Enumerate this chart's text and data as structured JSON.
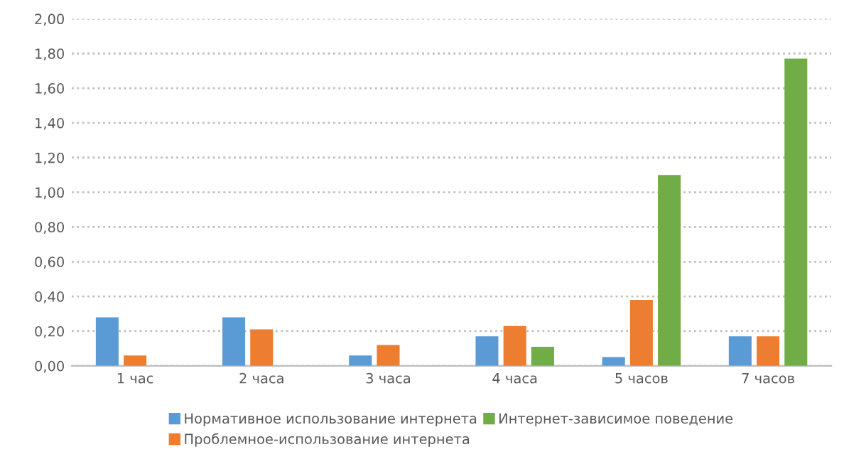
{
  "chart_data": {
    "type": "bar",
    "categories": [
      "1 час",
      "2 часа",
      "3 часа",
      "4 часа",
      "5 часов",
      "7 часов"
    ],
    "series": [
      {
        "name": "Нормативное использование интернета",
        "color": "#5b9bd5",
        "values": [
          0.28,
          0.28,
          0.06,
          0.17,
          0.05,
          0.17
        ]
      },
      {
        "name": "Проблемное-использование интернета",
        "color": "#ed7d31",
        "values": [
          0.06,
          0.21,
          0.12,
          0.23,
          0.38,
          0.17
        ]
      },
      {
        "name": "Интернет-зависимое поведение",
        "color": "#70ad47",
        "values": [
          0,
          0,
          0,
          0.11,
          1.1,
          1.77
        ]
      }
    ],
    "ylim": [
      0,
      2
    ],
    "yticks": [
      {
        "value": 0,
        "label": "0,00"
      },
      {
        "value": 0.2,
        "label": "0,20"
      },
      {
        "value": 0.4,
        "label": "0,40"
      },
      {
        "value": 0.6,
        "label": "0,60"
      },
      {
        "value": 0.8,
        "label": "0,80"
      },
      {
        "value": 1.0,
        "label": "1,00"
      },
      {
        "value": 1.2,
        "label": "1,20"
      },
      {
        "value": 1.4,
        "label": "1,40"
      },
      {
        "value": 1.6,
        "label": "1,60"
      },
      {
        "value": 1.8,
        "label": "1,80"
      },
      {
        "value": 2.0,
        "label": "2,00"
      }
    ],
    "grid": "y",
    "legend": "bottom"
  }
}
